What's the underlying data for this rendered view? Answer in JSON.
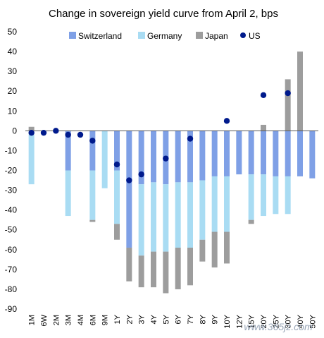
{
  "chart_data": {
    "type": "bar",
    "title": "Change in sovereign yield curve from April 2, bps",
    "xlabel": "",
    "ylabel": "",
    "ylim": [
      -90,
      50
    ],
    "yticks": [
      50,
      40,
      30,
      20,
      10,
      0,
      -10,
      -20,
      -30,
      -40,
      -50,
      -60,
      -70,
      -80,
      -90
    ],
    "grid": false,
    "legend_position": "top",
    "categories": [
      "1M",
      "6W",
      "2M",
      "3M",
      "4M",
      "6M",
      "9M",
      "1Y",
      "2Y",
      "3Y",
      "4Y",
      "5Y",
      "6Y",
      "7Y",
      "8Y",
      "9Y",
      "10Y",
      "12Y",
      "15Y",
      "20Y",
      "25Y",
      "30Y",
      "40Y",
      "50Y"
    ],
    "series": [
      {
        "name": "Switzerland",
        "type": "bar",
        "color": "#7fa0e6",
        "values": [
          0,
          null,
          null,
          -20,
          null,
          -20,
          null,
          -20,
          -59,
          -27,
          -26,
          -27,
          -26,
          -26,
          -25,
          -23,
          -23,
          -22,
          -22,
          -22,
          -23,
          -23,
          -23,
          -24
        ]
      },
      {
        "name": "Germany",
        "type": "bar",
        "color": "#a9dcf3",
        "values": [
          -27,
          null,
          null,
          -23,
          null,
          -25,
          -29,
          -27,
          0,
          -36,
          -35,
          -34,
          -33,
          -33,
          -30,
          -28,
          -28,
          null,
          -23,
          -21,
          -19,
          -19,
          null,
          null
        ]
      },
      {
        "name": "Japan",
        "type": "bar",
        "color": "#9d9d9d",
        "values": [
          2,
          null,
          null,
          null,
          null,
          -1,
          null,
          -8,
          -17,
          -16,
          -18,
          -21,
          -21,
          -19,
          -11,
          -18,
          -16,
          null,
          -2,
          3,
          null,
          26,
          40,
          null
        ]
      },
      {
        "name": "US",
        "type": "scatter",
        "color": "#001a8c",
        "values": [
          -1,
          -1,
          0,
          -2,
          -2,
          -5,
          null,
          -17,
          -25,
          -22,
          null,
          -14,
          null,
          -4,
          null,
          null,
          5,
          null,
          null,
          18,
          null,
          19,
          null,
          null
        ]
      }
    ]
  },
  "watermark": "www.365jz.com"
}
